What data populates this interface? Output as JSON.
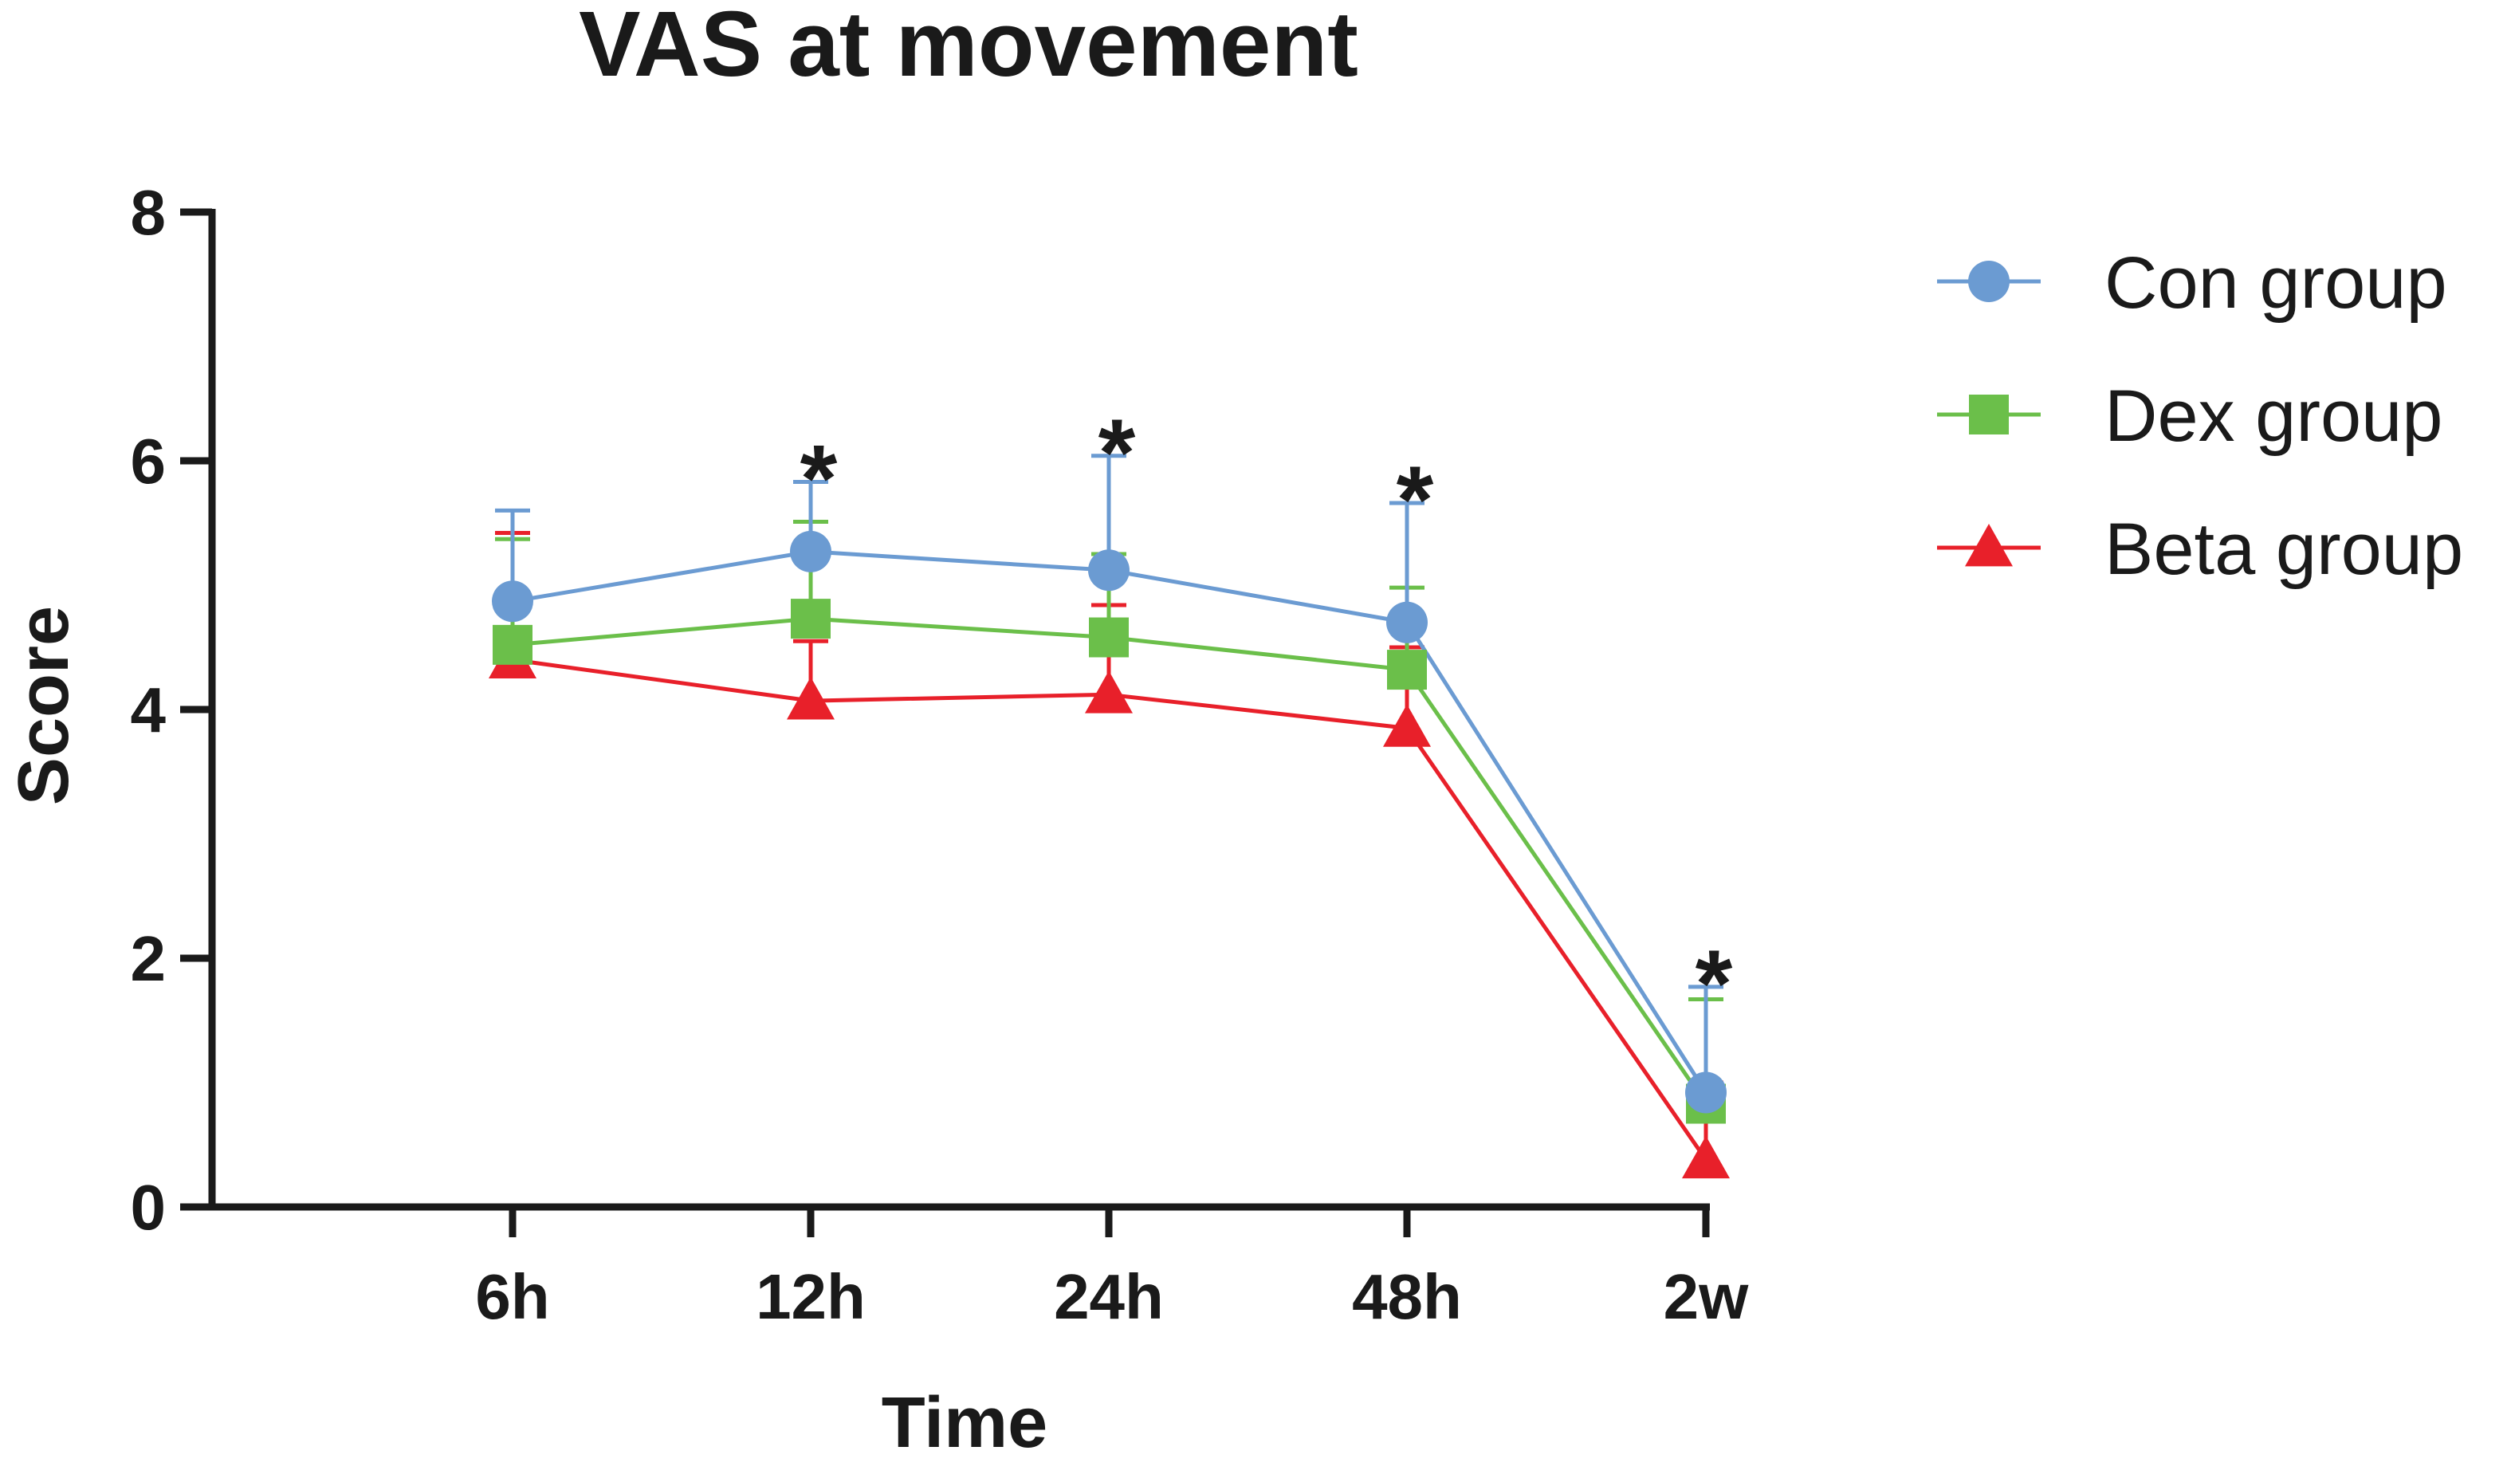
{
  "chart_data": {
    "type": "line",
    "title": "VAS at movement",
    "xlabel": "Time",
    "ylabel": "Score",
    "categories": [
      "6h",
      "12h",
      "24h",
      "48h",
      "2w"
    ],
    "ylim": [
      0,
      8
    ],
    "yticks": [
      "0",
      "2",
      "4",
      "6",
      "8"
    ],
    "legend_position": "right",
    "series": [
      {
        "name": "Con group",
        "color": "#6b9bd2",
        "marker": "circle",
        "values": [
          4.87,
          5.27,
          5.12,
          4.7,
          0.92
        ],
        "error_upper": [
          5.6,
          5.83,
          6.04,
          5.66,
          1.77
        ]
      },
      {
        "name": "Dex group",
        "color": "#6bbf4a",
        "marker": "square",
        "values": [
          4.52,
          4.73,
          4.58,
          4.32,
          0.83
        ],
        "error_upper": [
          5.37,
          5.51,
          5.25,
          4.98,
          1.67
        ]
      },
      {
        "name": "Beta group",
        "color": "#e8202a",
        "marker": "triangle",
        "values": [
          4.4,
          4.07,
          4.12,
          3.85,
          0.38
        ],
        "error_upper": [
          5.42,
          4.55,
          4.84,
          4.5,
          1.0
        ]
      }
    ],
    "annotations": [
      {
        "category": "12h",
        "text": "*"
      },
      {
        "category": "24h",
        "text": "*"
      },
      {
        "category": "48h",
        "text": "*"
      },
      {
        "category": "2w",
        "text": "*"
      }
    ]
  }
}
